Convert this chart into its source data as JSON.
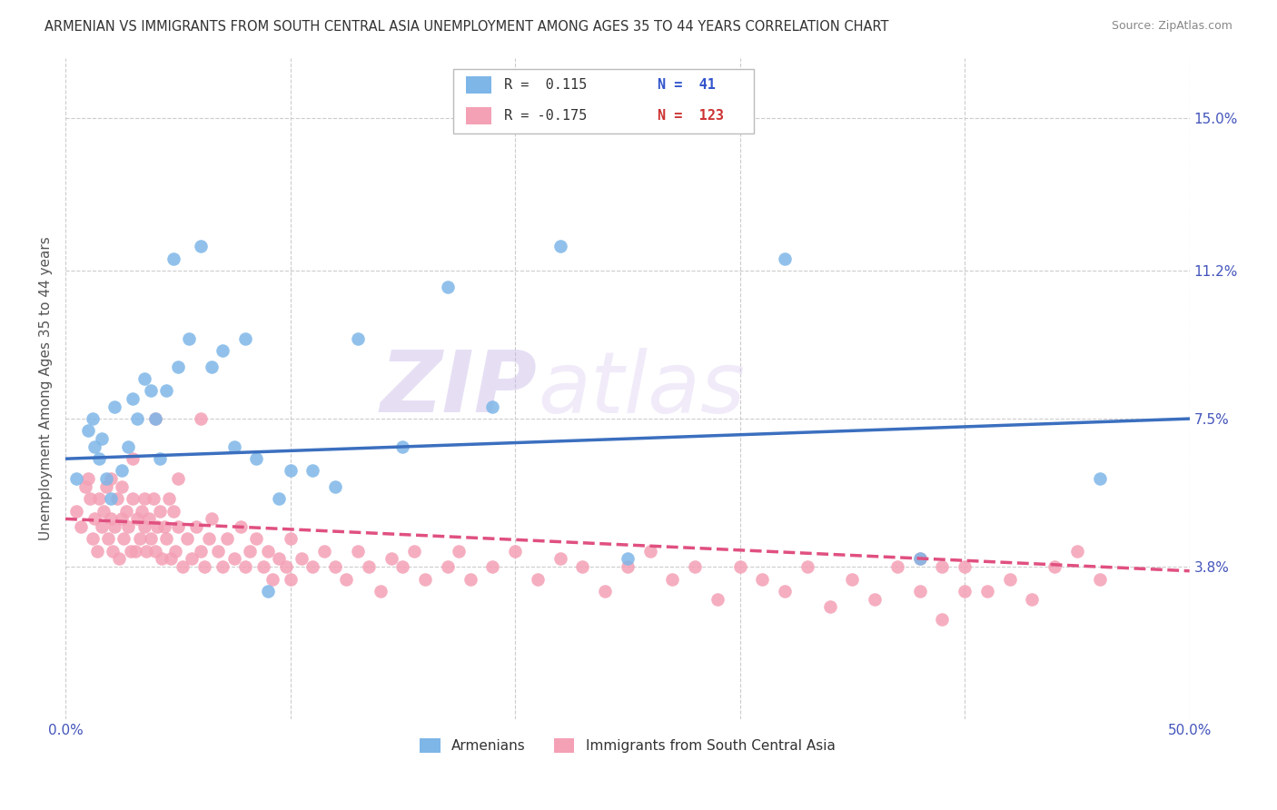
{
  "title": "ARMENIAN VS IMMIGRANTS FROM SOUTH CENTRAL ASIA UNEMPLOYMENT AMONG AGES 35 TO 44 YEARS CORRELATION CHART",
  "source": "Source: ZipAtlas.com",
  "ylabel": "Unemployment Among Ages 35 to 44 years",
  "xlim": [
    0.0,
    0.5
  ],
  "ylim": [
    0.0,
    0.165
  ],
  "xticks": [
    0.0,
    0.1,
    0.2,
    0.3,
    0.4,
    0.5
  ],
  "xticklabels": [
    "0.0%",
    "",
    "",
    "",
    "",
    "50.0%"
  ],
  "yticks_right": [
    0.038,
    0.075,
    0.112,
    0.15
  ],
  "yticklabels_right": [
    "3.8%",
    "7.5%",
    "11.2%",
    "15.0%"
  ],
  "armenian_color": "#7EB6E8",
  "immigrant_color": "#F4A0B5",
  "trendline_armenian_color": "#3B6FBF",
  "trendline_immigrant_color": "#E05080",
  "legend_R_armenian": "R =  0.115",
  "legend_N_armenian": "N =  41",
  "legend_R_immigrant": "R = -0.175",
  "legend_N_immigrant": "N =  123",
  "watermark_zip": "ZIP",
  "watermark_atlas": "atlas",
  "arm_trendline_start": 0.065,
  "arm_trendline_end": 0.075,
  "imm_trendline_start": 0.05,
  "imm_trendline_end": 0.037,
  "armenian_points": [
    [
      0.005,
      0.06
    ],
    [
      0.01,
      0.072
    ],
    [
      0.012,
      0.075
    ],
    [
      0.013,
      0.068
    ],
    [
      0.015,
      0.065
    ],
    [
      0.016,
      0.07
    ],
    [
      0.018,
      0.06
    ],
    [
      0.02,
      0.055
    ],
    [
      0.022,
      0.078
    ],
    [
      0.025,
      0.062
    ],
    [
      0.028,
      0.068
    ],
    [
      0.03,
      0.08
    ],
    [
      0.032,
      0.075
    ],
    [
      0.035,
      0.085
    ],
    [
      0.038,
      0.082
    ],
    [
      0.04,
      0.075
    ],
    [
      0.042,
      0.065
    ],
    [
      0.045,
      0.082
    ],
    [
      0.048,
      0.115
    ],
    [
      0.05,
      0.088
    ],
    [
      0.055,
      0.095
    ],
    [
      0.06,
      0.118
    ],
    [
      0.065,
      0.088
    ],
    [
      0.07,
      0.092
    ],
    [
      0.075,
      0.068
    ],
    [
      0.08,
      0.095
    ],
    [
      0.085,
      0.065
    ],
    [
      0.09,
      0.032
    ],
    [
      0.095,
      0.055
    ],
    [
      0.1,
      0.062
    ],
    [
      0.11,
      0.062
    ],
    [
      0.12,
      0.058
    ],
    [
      0.13,
      0.095
    ],
    [
      0.15,
      0.068
    ],
    [
      0.17,
      0.108
    ],
    [
      0.19,
      0.078
    ],
    [
      0.22,
      0.118
    ],
    [
      0.25,
      0.04
    ],
    [
      0.32,
      0.115
    ],
    [
      0.38,
      0.04
    ],
    [
      0.46,
      0.06
    ]
  ],
  "immigrant_points": [
    [
      0.005,
      0.052
    ],
    [
      0.007,
      0.048
    ],
    [
      0.009,
      0.058
    ],
    [
      0.01,
      0.06
    ],
    [
      0.011,
      0.055
    ],
    [
      0.012,
      0.045
    ],
    [
      0.013,
      0.05
    ],
    [
      0.014,
      0.042
    ],
    [
      0.015,
      0.055
    ],
    [
      0.016,
      0.048
    ],
    [
      0.017,
      0.052
    ],
    [
      0.018,
      0.058
    ],
    [
      0.019,
      0.045
    ],
    [
      0.02,
      0.05
    ],
    [
      0.02,
      0.06
    ],
    [
      0.021,
      0.042
    ],
    [
      0.022,
      0.048
    ],
    [
      0.023,
      0.055
    ],
    [
      0.024,
      0.04
    ],
    [
      0.025,
      0.05
    ],
    [
      0.025,
      0.058
    ],
    [
      0.026,
      0.045
    ],
    [
      0.027,
      0.052
    ],
    [
      0.028,
      0.048
    ],
    [
      0.029,
      0.042
    ],
    [
      0.03,
      0.055
    ],
    [
      0.03,
      0.065
    ],
    [
      0.031,
      0.042
    ],
    [
      0.032,
      0.05
    ],
    [
      0.033,
      0.045
    ],
    [
      0.034,
      0.052
    ],
    [
      0.035,
      0.048
    ],
    [
      0.035,
      0.055
    ],
    [
      0.036,
      0.042
    ],
    [
      0.037,
      0.05
    ],
    [
      0.038,
      0.045
    ],
    [
      0.039,
      0.055
    ],
    [
      0.04,
      0.042
    ],
    [
      0.04,
      0.075
    ],
    [
      0.041,
      0.048
    ],
    [
      0.042,
      0.052
    ],
    [
      0.043,
      0.04
    ],
    [
      0.044,
      0.048
    ],
    [
      0.045,
      0.045
    ],
    [
      0.046,
      0.055
    ],
    [
      0.047,
      0.04
    ],
    [
      0.048,
      0.052
    ],
    [
      0.049,
      0.042
    ],
    [
      0.05,
      0.048
    ],
    [
      0.05,
      0.06
    ],
    [
      0.052,
      0.038
    ],
    [
      0.054,
      0.045
    ],
    [
      0.056,
      0.04
    ],
    [
      0.058,
      0.048
    ],
    [
      0.06,
      0.042
    ],
    [
      0.06,
      0.075
    ],
    [
      0.062,
      0.038
    ],
    [
      0.064,
      0.045
    ],
    [
      0.065,
      0.05
    ],
    [
      0.068,
      0.042
    ],
    [
      0.07,
      0.038
    ],
    [
      0.072,
      0.045
    ],
    [
      0.075,
      0.04
    ],
    [
      0.078,
      0.048
    ],
    [
      0.08,
      0.038
    ],
    [
      0.082,
      0.042
    ],
    [
      0.085,
      0.045
    ],
    [
      0.088,
      0.038
    ],
    [
      0.09,
      0.042
    ],
    [
      0.092,
      0.035
    ],
    [
      0.095,
      0.04
    ],
    [
      0.098,
      0.038
    ],
    [
      0.1,
      0.045
    ],
    [
      0.1,
      0.035
    ],
    [
      0.105,
      0.04
    ],
    [
      0.11,
      0.038
    ],
    [
      0.115,
      0.042
    ],
    [
      0.12,
      0.038
    ],
    [
      0.125,
      0.035
    ],
    [
      0.13,
      0.042
    ],
    [
      0.135,
      0.038
    ],
    [
      0.14,
      0.032
    ],
    [
      0.145,
      0.04
    ],
    [
      0.15,
      0.038
    ],
    [
      0.155,
      0.042
    ],
    [
      0.16,
      0.035
    ],
    [
      0.17,
      0.038
    ],
    [
      0.175,
      0.042
    ],
    [
      0.18,
      0.035
    ],
    [
      0.19,
      0.038
    ],
    [
      0.2,
      0.042
    ],
    [
      0.21,
      0.035
    ],
    [
      0.22,
      0.04
    ],
    [
      0.23,
      0.038
    ],
    [
      0.24,
      0.032
    ],
    [
      0.25,
      0.038
    ],
    [
      0.26,
      0.042
    ],
    [
      0.27,
      0.035
    ],
    [
      0.28,
      0.038
    ],
    [
      0.29,
      0.03
    ],
    [
      0.3,
      0.038
    ],
    [
      0.31,
      0.035
    ],
    [
      0.32,
      0.032
    ],
    [
      0.33,
      0.038
    ],
    [
      0.34,
      0.028
    ],
    [
      0.35,
      0.035
    ],
    [
      0.36,
      0.03
    ],
    [
      0.37,
      0.038
    ],
    [
      0.38,
      0.032
    ],
    [
      0.39,
      0.025
    ],
    [
      0.4,
      0.038
    ],
    [
      0.41,
      0.032
    ],
    [
      0.42,
      0.035
    ],
    [
      0.43,
      0.03
    ],
    [
      0.44,
      0.038
    ],
    [
      0.45,
      0.042
    ],
    [
      0.46,
      0.035
    ],
    [
      0.38,
      0.04
    ],
    [
      0.39,
      0.038
    ],
    [
      0.4,
      0.032
    ]
  ]
}
